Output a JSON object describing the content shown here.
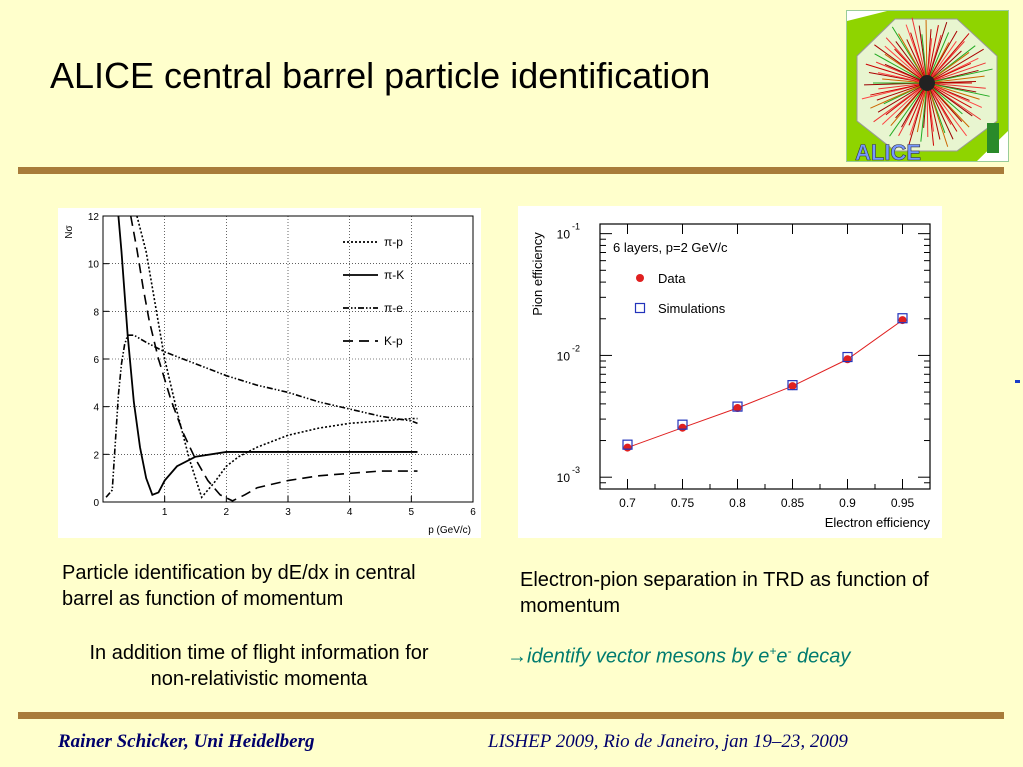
{
  "slide": {
    "title": "ALICE central barrel particle identification",
    "logo_text": "ALICE",
    "caption_left": "Particle identification  by dE/dx in central barrel as function of momentum",
    "caption_right": "Electron-pion separation in TRD as function of momentum",
    "note": "In addition time of flight information for non-relativistic momenta",
    "arrow_text": {
      "prefix": "→identify vector mesons by e",
      "sup1": "+",
      "mid": "e",
      "sup2": "-",
      "suffix": " decay"
    },
    "footer_left": "Rainer Schicker, Uni Heidelberg",
    "footer_right": "LISHEP 2009, Rio de Janeiro,  jan 19–23, 2009"
  },
  "chart_data": [
    {
      "type": "line",
      "title": "",
      "xlabel": "p (GeV/c)",
      "ylabel": "Nσ",
      "xlim": [
        0,
        6
      ],
      "ylim": [
        0,
        12
      ],
      "xticks": [
        "1",
        "2",
        "3",
        "4",
        "5",
        "6"
      ],
      "yticks": [
        "0",
        "2",
        "4",
        "6",
        "8",
        "10",
        "12"
      ],
      "grid": true,
      "legend_position": "top-right",
      "series": [
        {
          "name": "π-p",
          "style": "dotted",
          "x": [
            0.55,
            0.7,
            0.8,
            0.9,
            1.0,
            1.2,
            1.4,
            1.6,
            1.8,
            2.0,
            2.2,
            2.5,
            3.0,
            3.5,
            4.0,
            4.5,
            5.0,
            5.1
          ],
          "y": [
            12,
            10.5,
            9.0,
            7.5,
            6.0,
            3.8,
            1.8,
            0.2,
            0.8,
            1.5,
            1.9,
            2.3,
            2.8,
            3.1,
            3.3,
            3.4,
            3.5,
            3.5
          ]
        },
        {
          "name": "π-K",
          "style": "solid",
          "x": [
            0.25,
            0.3,
            0.4,
            0.5,
            0.6,
            0.7,
            0.8,
            0.9,
            1.0,
            1.2,
            1.5,
            2.0,
            2.5,
            3.0,
            4.0,
            5.0,
            5.1
          ],
          "y": [
            12,
            10.5,
            7.0,
            4.2,
            2.3,
            1.0,
            0.3,
            0.4,
            0.9,
            1.5,
            1.9,
            2.1,
            2.1,
            2.1,
            2.1,
            2.1,
            2.1
          ]
        },
        {
          "name": "π-e",
          "style": "dash-dot-dot",
          "x": [
            0.05,
            0.15,
            0.2,
            0.25,
            0.3,
            0.35,
            0.4,
            0.5,
            0.7,
            1.0,
            1.5,
            2.0,
            2.5,
            3.0,
            3.5,
            4.0,
            4.5,
            5.0,
            5.1
          ],
          "y": [
            0.2,
            0.5,
            2.5,
            4.5,
            5.8,
            6.6,
            7.0,
            7.0,
            6.7,
            6.3,
            5.8,
            5.3,
            4.9,
            4.6,
            4.2,
            3.9,
            3.6,
            3.4,
            3.3
          ]
        },
        {
          "name": "K-p",
          "style": "dashed",
          "x": [
            0.45,
            0.55,
            0.65,
            0.75,
            0.9,
            1.1,
            1.3,
            1.5,
            1.7,
            1.9,
            2.1,
            2.3,
            2.5,
            3.0,
            3.5,
            4.0,
            4.5,
            5.0,
            5.1
          ],
          "y": [
            12,
            10.6,
            9.0,
            7.6,
            6.0,
            4.3,
            2.9,
            1.8,
            0.9,
            0.3,
            0.05,
            0.3,
            0.6,
            0.9,
            1.1,
            1.2,
            1.3,
            1.3,
            1.3
          ]
        }
      ]
    },
    {
      "type": "scatter",
      "title": "6 layers, p=2 GeV/c",
      "xlabel": "Electron efficiency",
      "ylabel": "Pion efficiency",
      "xlim": [
        0.675,
        0.975
      ],
      "ylim": [
        0.0008,
        0.12
      ],
      "log_y": true,
      "xticks": [
        "0.7",
        "0.75",
        "0.8",
        "0.85",
        "0.9",
        "0.95"
      ],
      "yticks": [
        {
          "base": "10",
          "exp": "-3",
          "value": 0.001
        },
        {
          "base": "10",
          "exp": "-2",
          "value": 0.01
        },
        {
          "base": "10",
          "exp": "-1",
          "value": 0.1
        }
      ],
      "legend_position": "top-left",
      "series": [
        {
          "name": "Data",
          "marker": "filled-circle",
          "color": "#e02020",
          "x": [
            0.7,
            0.75,
            0.8,
            0.85,
            0.9,
            0.95
          ],
          "y": [
            0.00175,
            0.00255,
            0.0037,
            0.0056,
            0.0093,
            0.0195
          ]
        },
        {
          "name": "Simulations",
          "marker": "open-square",
          "color": "#2233bb",
          "x": [
            0.7,
            0.75,
            0.8,
            0.85,
            0.9,
            0.95
          ],
          "y": [
            0.00185,
            0.0027,
            0.0038,
            0.0057,
            0.0097,
            0.0202
          ]
        }
      ],
      "fit_line_color": "#e02020"
    }
  ]
}
